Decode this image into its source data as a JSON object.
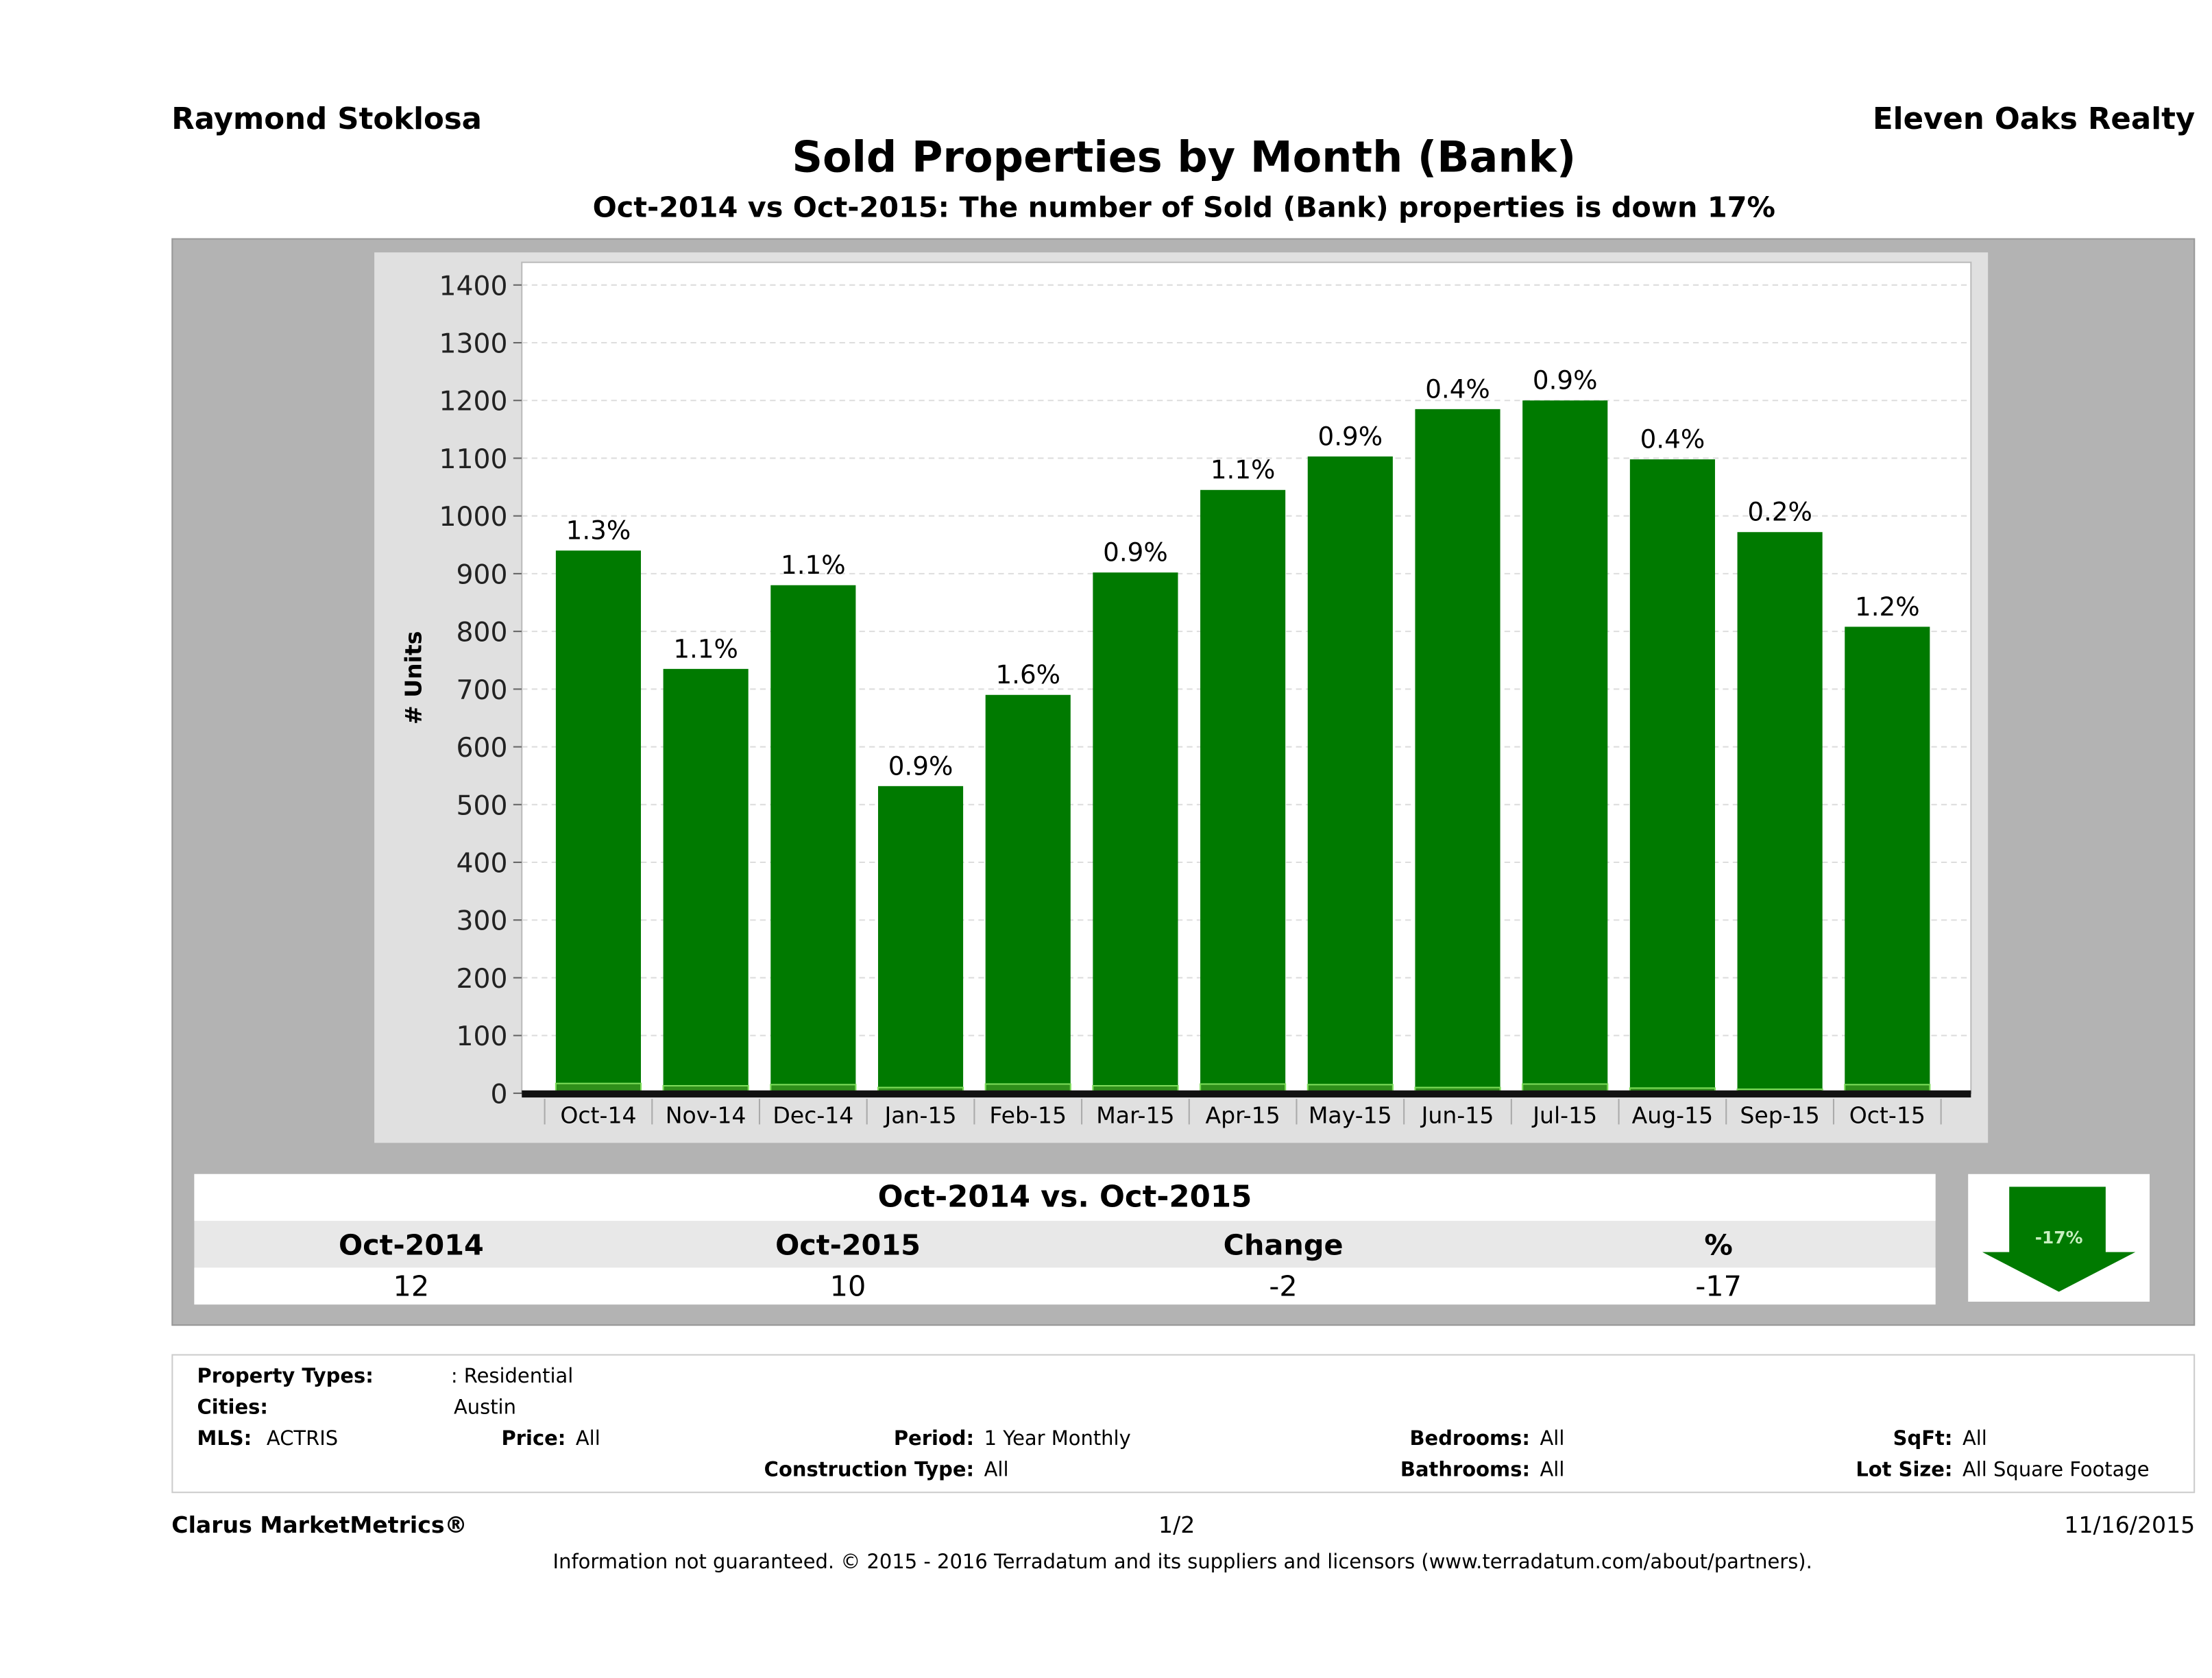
{
  "header": {
    "agent": "Raymond Stoklosa",
    "brokerage": "Eleven Oaks Realty",
    "title": "Sold Properties by Month (Bank)",
    "subtitle": "Oct-2014 vs Oct-2015: The number of Sold (Bank)  properties is down 17%"
  },
  "chart_data": {
    "type": "bar",
    "ylabel": "# Units",
    "ylim": [
      0,
      1400
    ],
    "yticks": [
      "0",
      "100",
      "200",
      "300",
      "400",
      "500",
      "600",
      "700",
      "800",
      "900",
      "1000",
      "1100",
      "1200",
      "1300",
      "1400"
    ],
    "grid": true,
    "categories": [
      "Oct-14",
      "Nov-14",
      "Dec-14",
      "Jan-15",
      "Feb-15",
      "Mar-15",
      "Apr-15",
      "May-15",
      "Jun-15",
      "Jul-15",
      "Aug-15",
      "Sep-15",
      "Oct-15"
    ],
    "series": [
      {
        "values": [
          940,
          735,
          880,
          532,
          690,
          902,
          1045,
          1103,
          1185,
          1200,
          1098,
          972,
          808
        ],
        "color": "#007a00"
      },
      {
        "values": [
          12,
          8,
          10,
          5,
          11,
          8,
          11,
          10,
          5,
          11,
          4,
          2,
          10
        ],
        "color": "#7ddc5a"
      }
    ],
    "data_labels": [
      "1.3%",
      "1.1%",
      "1.1%",
      "0.9%",
      "1.6%",
      "0.9%",
      "1.1%",
      "0.9%",
      "0.4%",
      "0.9%",
      "0.4%",
      "0.2%",
      "1.2%"
    ]
  },
  "stats": {
    "heading": "Oct-2014 vs. Oct-2015",
    "columns": [
      "Oct-2014",
      "Oct-2015",
      "Change",
      "%"
    ],
    "values": [
      "12",
      "10",
      "-2",
      "-17"
    ],
    "badge": "-17%",
    "badge_color": "#007a00",
    "arrow_icon": "arrow-down-icon"
  },
  "filters": {
    "property_types_label": "Property Types:",
    "property_types": ": Residential",
    "cities_label": "Cities:",
    "cities": "Austin",
    "mls_label": "MLS:",
    "mls": "ACTRIS",
    "price_label": "Price:",
    "price": "All",
    "period_label": "Period:",
    "period": "1 Year Monthly",
    "construction_label": "Construction Type:",
    "construction": "All",
    "bedrooms_label": "Bedrooms:",
    "bedrooms": "All",
    "bathrooms_label": "Bathrooms:",
    "bathrooms": "All",
    "sqft_label": "SqFt:",
    "sqft": "All",
    "lot_label": "Lot Size:",
    "lot": "All Square Footage"
  },
  "footer": {
    "brand": "Clarus MarketMetrics®",
    "page": "1/2",
    "date": "11/16/2015",
    "disclaimer": "Information not guaranteed. © 2015 - 2016 Terradatum and its suppliers and licensors (www.terradatum.com/about/partners)."
  }
}
